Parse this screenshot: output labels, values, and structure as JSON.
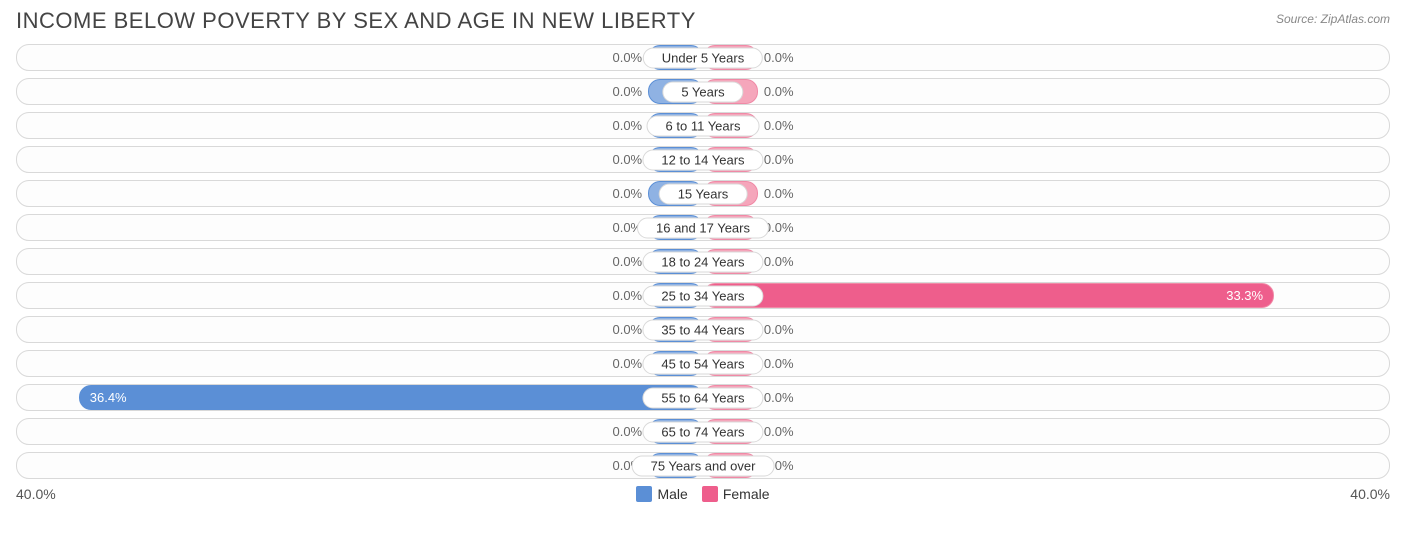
{
  "title": "INCOME BELOW POVERTY BY SEX AND AGE IN NEW LIBERTY",
  "source": "Source: ZipAtlas.com",
  "axis_max": 40.0,
  "axis_label_left": "40.0%",
  "axis_label_right": "40.0%",
  "min_bar_pct": 8.0,
  "colors": {
    "male_fill": "#8fb2e3",
    "male_border": "#5b8fd6",
    "male_solid": "#5b8fd6",
    "female_fill": "#f5a6bb",
    "female_border": "#f089a6",
    "female_solid": "#ee5e8c",
    "row_border": "#d9d9d9",
    "text": "#555555",
    "bar_text": "#ffffff"
  },
  "legend": {
    "male_label": "Male",
    "female_label": "Female"
  },
  "rows": [
    {
      "label": "Under 5 Years",
      "male": 0.0,
      "female": 0.0
    },
    {
      "label": "5 Years",
      "male": 0.0,
      "female": 0.0
    },
    {
      "label": "6 to 11 Years",
      "male": 0.0,
      "female": 0.0
    },
    {
      "label": "12 to 14 Years",
      "male": 0.0,
      "female": 0.0
    },
    {
      "label": "15 Years",
      "male": 0.0,
      "female": 0.0
    },
    {
      "label": "16 and 17 Years",
      "male": 0.0,
      "female": 0.0
    },
    {
      "label": "18 to 24 Years",
      "male": 0.0,
      "female": 0.0
    },
    {
      "label": "25 to 34 Years",
      "male": 0.0,
      "female": 33.3
    },
    {
      "label": "35 to 44 Years",
      "male": 0.0,
      "female": 0.0
    },
    {
      "label": "45 to 54 Years",
      "male": 0.0,
      "female": 0.0
    },
    {
      "label": "55 to 64 Years",
      "male": 36.4,
      "female": 0.0
    },
    {
      "label": "65 to 74 Years",
      "male": 0.0,
      "female": 0.0
    },
    {
      "label": "75 Years and over",
      "male": 0.0,
      "female": 0.0
    }
  ]
}
